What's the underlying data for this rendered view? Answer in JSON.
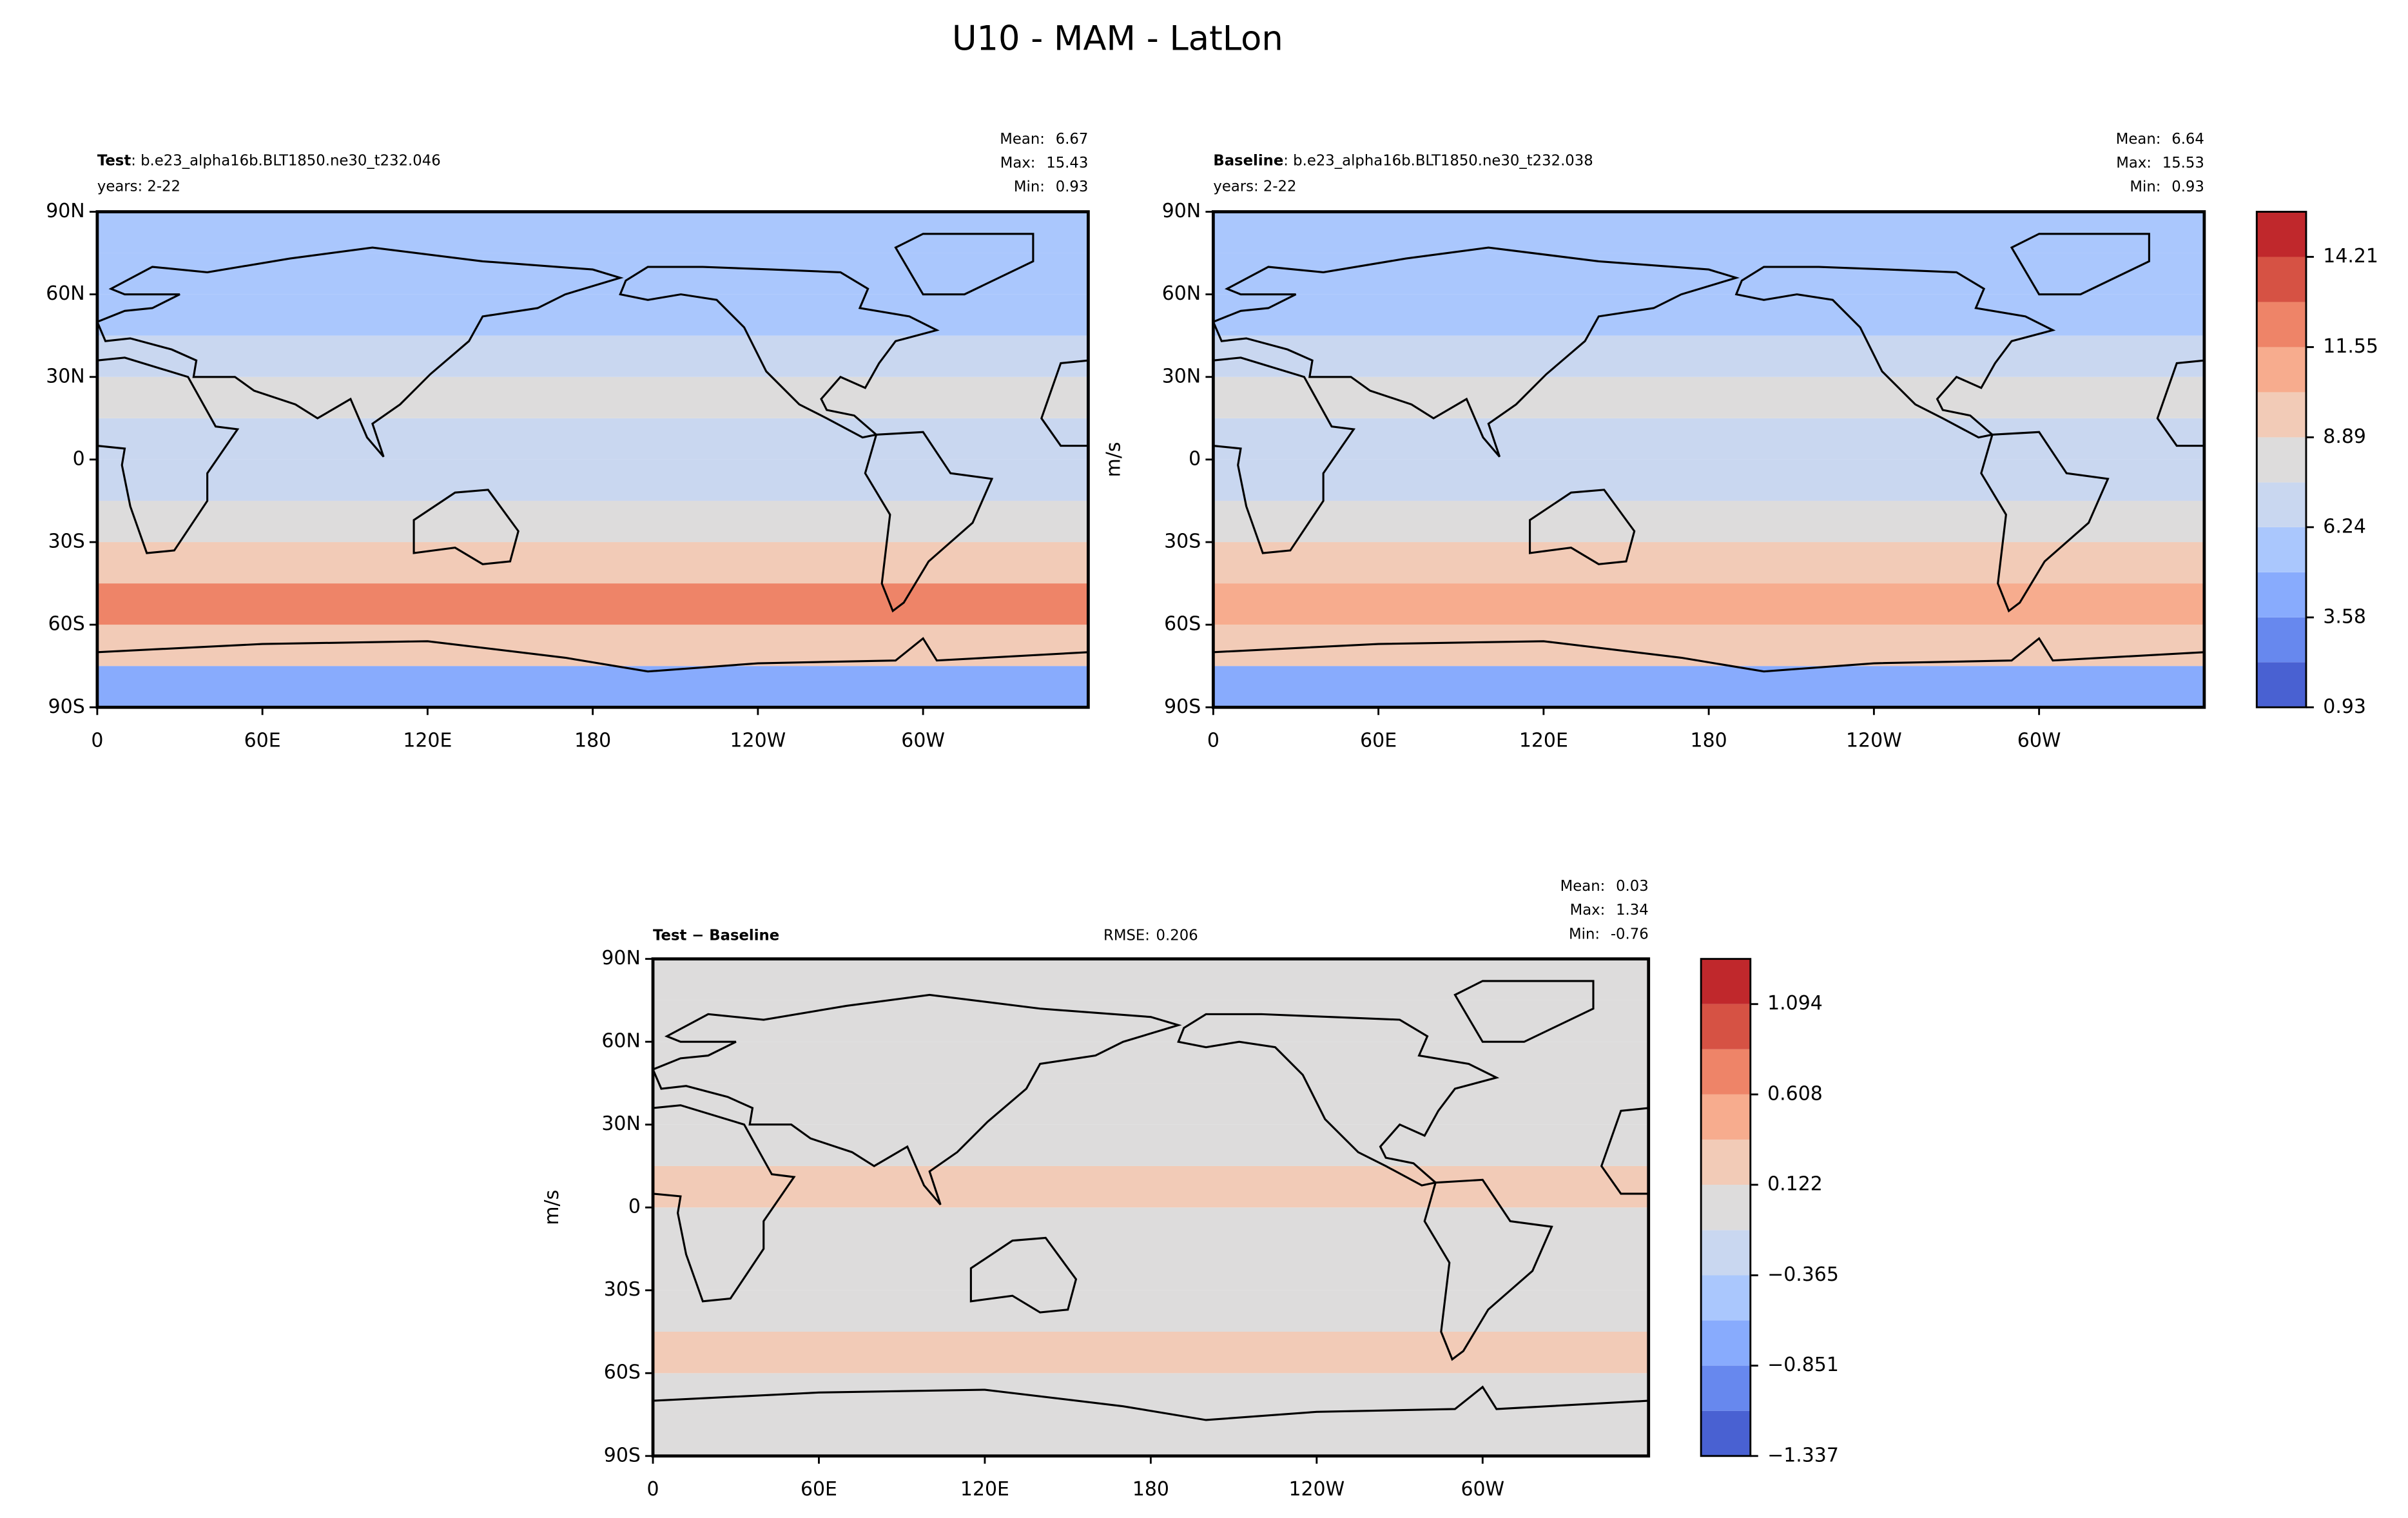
{
  "title": "U10 - MAM - LatLon",
  "chart_data": [
    {
      "type": "contour",
      "name_label": "Test",
      "case": ": b.e23_alpha16b.BLT1850.ne30_t232.046",
      "years": "years: 2-22",
      "stats": [
        {
          "label": "Mean:",
          "value": 6.67
        },
        {
          "label": "Max:",
          "value": 15.43
        },
        {
          "label": "Min:",
          "value": 0.93
        }
      ],
      "xlim": [
        0,
        360
      ],
      "xticks": [
        0,
        {
          "value": 60,
          "label": "60E"
        },
        {
          "value": 120,
          "label": "120E"
        },
        180,
        {
          "value": 240,
          "label": "120W"
        },
        {
          "value": 300,
          "label": "60W"
        }
      ],
      "ylim": [
        -90,
        90
      ],
      "yticks": [
        {
          "value": -90,
          "label": "90S"
        },
        {
          "value": -60,
          "label": "60S"
        },
        {
          "value": -30,
          "label": "30S"
        },
        0,
        {
          "value": 30,
          "label": "30N"
        },
        {
          "value": 60,
          "label": "60N"
        },
        {
          "value": 90,
          "label": "90N"
        }
      ],
      "band_edges": [
        -90,
        -75,
        -60,
        -45,
        -30,
        -15,
        0,
        15,
        30,
        45,
        60,
        75,
        90
      ],
      "band_values": [
        4,
        9,
        11.6,
        9.5,
        8,
        7,
        7.2,
        8,
        7,
        6,
        5,
        5
      ]
    },
    {
      "type": "contour",
      "name_label": "Baseline",
      "case": ": b.e23_alpha16b.BLT1850.ne30_t232.038",
      "years": "years: 2-22",
      "stats": [
        {
          "label": "Mean:",
          "value": 6.64
        },
        {
          "label": "Max:",
          "value": 15.53
        },
        {
          "label": "Min:",
          "value": 0.93
        }
      ],
      "ylabel": "m/s",
      "xlim": [
        0,
        360
      ],
      "xticks": [
        0,
        {
          "value": 60,
          "label": "60E"
        },
        {
          "value": 120,
          "label": "120E"
        },
        180,
        {
          "value": 240,
          "label": "120W"
        },
        {
          "value": 300,
          "label": "60W"
        }
      ],
      "ylim": [
        -90,
        90
      ],
      "yticks": [
        {
          "value": -90,
          "label": "90S"
        },
        {
          "value": -60,
          "label": "60S"
        },
        {
          "value": -30,
          "label": "30S"
        },
        0,
        {
          "value": 30,
          "label": "30N"
        },
        {
          "value": 60,
          "label": "60N"
        },
        {
          "value": 90,
          "label": "90N"
        }
      ],
      "band_edges": [
        -90,
        -75,
        -60,
        -45,
        -30,
        -15,
        0,
        15,
        30,
        45,
        60,
        75,
        90
      ],
      "band_values": [
        4,
        9,
        11.5,
        9.4,
        8,
        7,
        7,
        7.9,
        7,
        6,
        5,
        5
      ],
      "colorbar": {
        "levels": [
          0.93,
          2.26,
          3.58,
          4.91,
          6.24,
          7.56,
          8.89,
          10.22,
          11.55,
          12.88,
          14.21,
          15.54
        ],
        "colors": [
          "#4961d2",
          "#6788ee",
          "#88abfd",
          "#aac7fd",
          "#c9d7f0",
          "#dddcdc",
          "#f2cbb7",
          "#f7ac8e",
          "#ee8468",
          "#d65244",
          "#c0282c"
        ],
        "ticks": [
          0.93,
          3.58,
          6.24,
          8.89,
          11.55,
          14.21
        ]
      }
    },
    {
      "type": "contour",
      "name_label": "Test − Baseline",
      "rmse": {
        "label": "RMSE:",
        "value": 0.206
      },
      "stats": [
        {
          "label": "Mean:",
          "value": 0.03
        },
        {
          "label": "Max:",
          "value": 1.34
        },
        {
          "label": "Min:",
          "value": -0.76
        }
      ],
      "ylabel": "m/s",
      "xlim": [
        0,
        360
      ],
      "xticks": [
        0,
        {
          "value": 60,
          "label": "60E"
        },
        {
          "value": 120,
          "label": "120E"
        },
        180,
        {
          "value": 240,
          "label": "120W"
        },
        {
          "value": 300,
          "label": "60W"
        }
      ],
      "ylim": [
        -90,
        90
      ],
      "yticks": [
        {
          "value": -90,
          "label": "90S"
        },
        {
          "value": -60,
          "label": "60S"
        },
        {
          "value": -30,
          "label": "30S"
        },
        0,
        {
          "value": 30,
          "label": "30N"
        },
        {
          "value": 60,
          "label": "60N"
        },
        {
          "value": 90,
          "label": "90N"
        }
      ],
      "band_edges": [
        -90,
        -75,
        -60,
        -45,
        -30,
        -15,
        0,
        15,
        30,
        45,
        60,
        75,
        90
      ],
      "band_values": [
        0.05,
        0.1,
        0.15,
        0.05,
        0.02,
        0.1,
        0.15,
        0.1,
        0.05,
        0.03,
        0,
        -0.05
      ],
      "colorbar": {
        "levels": [
          -1.337,
          -1.094,
          -0.851,
          -0.608,
          -0.365,
          -0.122,
          0.122,
          0.365,
          0.608,
          0.851,
          1.094,
          1.337
        ],
        "colors": [
          "#4961d2",
          "#6788ee",
          "#88abfd",
          "#aac7fd",
          "#c9d7f0",
          "#dddcdc",
          "#f2cbb7",
          "#f7ac8e",
          "#ee8468",
          "#d65244",
          "#c0282c"
        ],
        "ticks": [
          {
            "value": -1.337,
            "label": "−1.337"
          },
          {
            "value": -0.851,
            "label": "−0.851"
          },
          {
            "value": -0.365,
            "label": "−0.365"
          },
          0.122,
          0.608,
          1.094
        ]
      }
    }
  ]
}
